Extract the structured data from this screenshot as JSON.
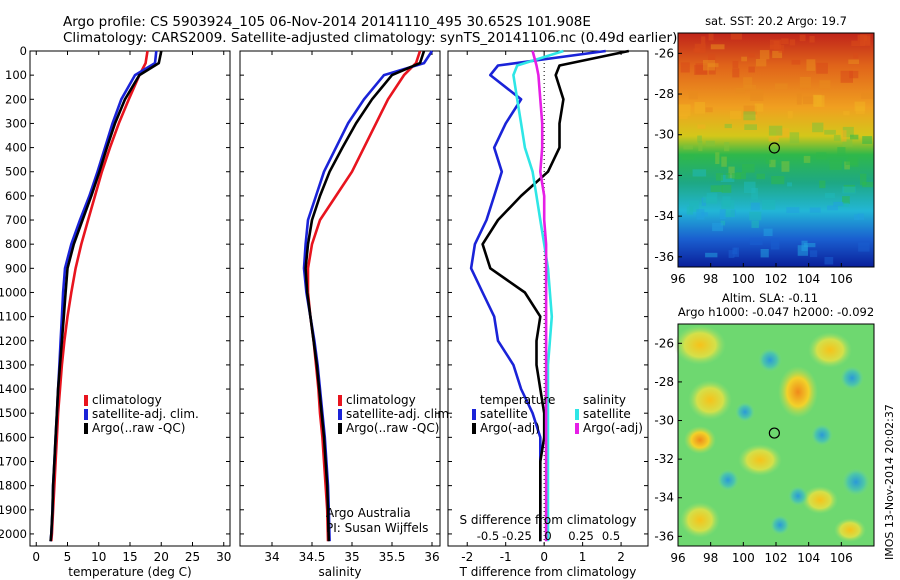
{
  "header": {
    "line1": "Argo profile: CS 5903924_105 06-Nov-2014 20141110_495 30.652S 101.908E",
    "line2": "Climatology: CARS2009. Satellite-adjusted climatology: synTS_20141106.nc (0.49d earlier)"
  },
  "credit": {
    "org": "Argo Australia",
    "pi": "PI: Susan Wijffels",
    "imos": "IMOS 13-Nov-2014 20:02:37"
  },
  "colors": {
    "climatology": "#e8141e",
    "satellite": "#1a23d8",
    "argo": "#000000",
    "satellite_sal": "#2ee6e6",
    "argo_sal": "#e61ee6"
  },
  "chart_data": [
    {
      "type": "line",
      "id": "temperature",
      "xlabel": "temperature (deg C)",
      "ylabel": "",
      "xlim": [
        -1,
        31
      ],
      "ylim": [
        2050,
        0
      ],
      "xticks": [
        0,
        5,
        10,
        15,
        20,
        25,
        30
      ],
      "yticks": [
        0,
        100,
        200,
        300,
        400,
        500,
        600,
        700,
        800,
        900,
        1000,
        1100,
        1200,
        1300,
        1400,
        1500,
        1600,
        1700,
        1800,
        1900,
        2000
      ],
      "legend": [
        "climatology",
        "satellite-adj. clim.",
        "Argo(..raw -QC)"
      ],
      "series": [
        {
          "name": "climatology",
          "color": "#e8141e",
          "x": [
            17.8,
            17.5,
            16.5,
            14.8,
            13.2,
            11.8,
            10.5,
            9.4,
            8.3,
            7.2,
            6.3,
            5.6,
            5.0,
            4.5,
            4.1,
            3.8,
            3.5,
            3.3,
            3.1,
            2.9,
            2.7,
            2.6,
            2.5,
            2.4
          ],
          "y": [
            0,
            50,
            100,
            200,
            300,
            400,
            500,
            600,
            700,
            800,
            900,
            1000,
            1100,
            1200,
            1300,
            1400,
            1500,
            1600,
            1700,
            1800,
            1900,
            1950,
            2000,
            2030
          ]
        },
        {
          "name": "satellite-adj. clim.",
          "color": "#1a23d8",
          "x": [
            19.2,
            19.0,
            15.8,
            13.6,
            12.2,
            11.0,
            9.8,
            8.5,
            7.0,
            5.6,
            4.6,
            4.3,
            4.1,
            3.9,
            3.7,
            3.5,
            3.3,
            3.1,
            2.9,
            2.7,
            2.6,
            2.5,
            2.4,
            2.3
          ],
          "y": [
            0,
            50,
            100,
            200,
            300,
            400,
            500,
            600,
            700,
            800,
            900,
            1000,
            1100,
            1200,
            1300,
            1400,
            1500,
            1600,
            1700,
            1800,
            1900,
            1950,
            2000,
            2030
          ]
        },
        {
          "name": "Argo(..raw -QC)",
          "color": "#000000",
          "x": [
            20.0,
            19.6,
            16.5,
            14.2,
            12.6,
            11.3,
            10.1,
            8.8,
            7.4,
            6.0,
            5.0,
            4.7,
            4.4,
            4.1,
            3.8,
            3.5,
            3.3,
            3.1,
            2.9,
            2.7,
            2.6,
            2.5,
            2.4,
            2.3
          ],
          "y": [
            0,
            50,
            100,
            200,
            300,
            400,
            500,
            600,
            700,
            800,
            900,
            1000,
            1100,
            1200,
            1300,
            1400,
            1500,
            1600,
            1700,
            1800,
            1900,
            1950,
            2000,
            2030
          ]
        }
      ]
    },
    {
      "type": "line",
      "id": "salinity",
      "xlabel": "salinity",
      "ylabel": "",
      "xlim": [
        33.6,
        36.1
      ],
      "ylim": [
        2050,
        0
      ],
      "xticks": [
        34,
        34.5,
        35,
        35.5,
        36
      ],
      "legend": [
        "climatology",
        "satellite-adj. clim.",
        "Argo(..raw -QC)"
      ],
      "series": [
        {
          "name": "climatology",
          "color": "#e8141e",
          "x": [
            35.85,
            35.8,
            35.65,
            35.45,
            35.3,
            35.15,
            35.0,
            34.8,
            34.6,
            34.5,
            34.45,
            34.45,
            34.48,
            34.52,
            34.55,
            34.58,
            34.6,
            34.63,
            34.65,
            34.67,
            34.69,
            34.7
          ],
          "y": [
            0,
            50,
            100,
            200,
            300,
            400,
            500,
            600,
            700,
            800,
            900,
            1000,
            1100,
            1200,
            1300,
            1400,
            1500,
            1600,
            1700,
            1800,
            1900,
            2030
          ]
        },
        {
          "name": "satellite-adj. clim.",
          "color": "#1a23d8",
          "x": [
            36.0,
            35.9,
            35.4,
            35.15,
            34.95,
            34.8,
            34.65,
            34.55,
            34.45,
            34.42,
            34.4,
            34.43,
            34.48,
            34.53,
            34.57,
            34.6,
            34.63,
            34.66,
            34.68,
            34.7,
            34.71,
            34.72
          ],
          "y": [
            0,
            50,
            100,
            200,
            300,
            400,
            500,
            600,
            700,
            800,
            900,
            1000,
            1100,
            1200,
            1300,
            1400,
            1500,
            1600,
            1700,
            1800,
            1900,
            2030
          ]
        },
        {
          "name": "Argo(..raw -QC)",
          "color": "#000000",
          "x": [
            35.9,
            35.85,
            35.5,
            35.25,
            35.05,
            34.88,
            34.72,
            34.6,
            34.5,
            34.45,
            34.42,
            34.44,
            34.48,
            34.52,
            34.56,
            34.59,
            34.62,
            34.65,
            34.67,
            34.69,
            34.7,
            34.71
          ],
          "y": [
            0,
            50,
            100,
            200,
            300,
            400,
            500,
            600,
            700,
            800,
            900,
            1000,
            1100,
            1200,
            1300,
            1400,
            1500,
            1600,
            1700,
            1800,
            1900,
            2030
          ]
        }
      ]
    },
    {
      "type": "line",
      "id": "difference",
      "xlabel": "T difference from climatology",
      "title_inner": "S difference from climatology",
      "xlim": [
        -2.5,
        2.7
      ],
      "ylim": [
        2050,
        0
      ],
      "xticks": [
        -2,
        -1,
        0,
        1,
        2
      ],
      "top_ticks": [
        "-0.5",
        "-0.25",
        "0",
        "0.25",
        "0.5"
      ],
      "legend_titles": [
        "temperature",
        "salinity"
      ],
      "legend": [
        "satellite",
        "Argo(-adj)",
        "satellite",
        "Argo(-adj)"
      ],
      "series": [
        {
          "name": "temperature satellite",
          "color": "#1a23d8",
          "x": [
            1.6,
            -1.2,
            -1.4,
            -0.6,
            -1.0,
            -1.3,
            -1.1,
            -1.3,
            -1.5,
            -1.8,
            -1.9,
            -1.6,
            -1.3,
            -1.2,
            -0.8,
            -0.6,
            -0.3,
            -0.1,
            -0.1,
            -0.1,
            -0.1,
            -0.1
          ],
          "y": [
            0,
            60,
            100,
            200,
            300,
            400,
            500,
            600,
            700,
            800,
            900,
            1000,
            1100,
            1200,
            1300,
            1400,
            1500,
            1600,
            1700,
            1800,
            1900,
            2030
          ]
        },
        {
          "name": "temperature Argo(-adj)",
          "color": "#000000",
          "x": [
            2.2,
            0.4,
            0.3,
            0.5,
            0.4,
            0.4,
            0.1,
            -0.6,
            -1.2,
            -1.6,
            -1.4,
            -0.5,
            -0.1,
            -0.2,
            -0.2,
            -0.1,
            0.0,
            0.0,
            -0.1,
            -0.1,
            -0.1,
            -0.1
          ],
          "y": [
            0,
            60,
            100,
            200,
            300,
            400,
            500,
            600,
            700,
            800,
            900,
            1000,
            1100,
            1200,
            1300,
            1400,
            1500,
            1600,
            1700,
            1800,
            1900,
            2030
          ]
        },
        {
          "name": "salinity satellite",
          "color": "#2ee6e6",
          "x": [
            0.5,
            -0.7,
            -0.8,
            -0.7,
            -0.6,
            -0.5,
            -0.3,
            -0.2,
            -0.1,
            0.0,
            0.1,
            0.15,
            0.2,
            0.15,
            0.1,
            0.1,
            0.1,
            0.1,
            0.1,
            0.1,
            0.1,
            0.1
          ],
          "y": [
            0,
            60,
            100,
            200,
            300,
            400,
            500,
            600,
            700,
            800,
            900,
            1000,
            1100,
            1200,
            1300,
            1400,
            1500,
            1600,
            1700,
            1800,
            1900,
            2030
          ]
        },
        {
          "name": "salinity Argo(-adj)",
          "color": "#e61ee6",
          "x": [
            -0.3,
            -0.2,
            -0.15,
            -0.1,
            -0.05,
            -0.05,
            -0.1,
            0.0,
            0.0,
            0.05,
            0.05,
            0.05,
            0.05,
            0.05,
            0.05,
            0.05,
            0.05,
            0.05,
            0.05,
            0.05,
            0.05,
            0.05
          ],
          "y": [
            0,
            60,
            100,
            200,
            300,
            400,
            500,
            600,
            700,
            800,
            900,
            1000,
            1100,
            1200,
            1300,
            1400,
            1500,
            1600,
            1700,
            1800,
            1900,
            2030
          ]
        }
      ]
    },
    {
      "type": "heatmap",
      "id": "sst-map",
      "title": "sat. SST: 20.2  Argo: 19.7",
      "xlim": [
        96,
        108
      ],
      "ylim": [
        -36.5,
        -25
      ],
      "xticks": [
        96,
        98,
        100,
        102,
        104,
        106
      ],
      "yticks": [
        -26,
        -28,
        -30,
        -32,
        -34,
        -36
      ],
      "marker": {
        "lon": 101.9,
        "lat": -30.65
      }
    },
    {
      "type": "heatmap",
      "id": "sla-map",
      "title": "Altim. SLA: -0.11",
      "subtitle": "Argo h1000: -0.047  h2000: -0.092",
      "xlim": [
        96,
        108
      ],
      "ylim": [
        -36.5,
        -25
      ],
      "xticks": [
        96,
        98,
        100,
        102,
        104,
        106
      ],
      "yticks": [
        -26,
        -28,
        -30,
        -32,
        -34,
        -36
      ],
      "marker": {
        "lon": 101.9,
        "lat": -30.65
      }
    }
  ]
}
